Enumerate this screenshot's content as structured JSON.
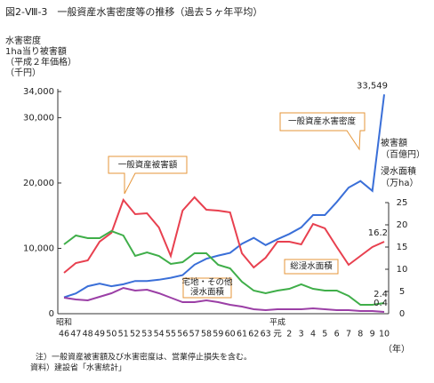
{
  "chart_data": {
    "type": "line",
    "title": "図2-Ⅷ-3　一般資産水害密度等の推移（過去５ヶ年平均）",
    "y_axis_title": [
      "水害密度",
      "1ha当り被害額",
      "（平成２年価格）",
      "（千円）"
    ],
    "y2_axis_title": [
      "被害額",
      "（百億円）",
      "浸水面積",
      "（万ha）"
    ],
    "x_axis_unit": "（年）",
    "eras": [
      {
        "label": "昭和",
        "at": "46"
      },
      {
        "label": "平成",
        "at": "元"
      }
    ],
    "categories": [
      "46",
      "47",
      "48",
      "49",
      "50",
      "51",
      "52",
      "53",
      "54",
      "55",
      "56",
      "57",
      "58",
      "59",
      "60",
      "61",
      "62",
      "63",
      "元",
      "2",
      "3",
      "4",
      "5",
      "6",
      "7",
      "8",
      "9",
      "10"
    ],
    "ylim": [
      0,
      34000
    ],
    "yticks": [
      0,
      {
        "value": 10000,
        "label": "10,000"
      },
      {
        "value": 20000,
        "label": "20,000"
      },
      {
        "value": 30000,
        "label": "30,000"
      },
      {
        "value": 34000,
        "label": "34,000"
      }
    ],
    "y2lim": [
      0,
      50
    ],
    "y2ticks": [
      0,
      5,
      10,
      15,
      20,
      25
    ],
    "series": [
      {
        "name": "一般資産水害密度",
        "color": "#3a6fd8",
        "values": [
          2500,
          3100,
          4200,
          4600,
          4200,
          4500,
          5000,
          5000,
          5200,
          5500,
          5900,
          7500,
          8400,
          8900,
          9300,
          10700,
          11600,
          10500,
          11400,
          12200,
          13200,
          15100,
          15100,
          17100,
          19300,
          20300,
          18800,
          33549
        ],
        "value_labels": [
          null,
          null,
          null,
          null,
          null,
          null,
          null,
          null,
          null,
          null,
          null,
          null,
          null,
          null,
          null,
          null,
          null,
          null,
          null,
          null,
          null,
          null,
          null,
          null,
          null,
          null,
          null,
          "33,549"
        ]
      },
      {
        "name": "一般資産被害額",
        "color": "#e8404f",
        "axis": "y2",
        "values": [
          9.2,
          11.4,
          12,
          16.2,
          18.2,
          25.6,
          22.4,
          22.6,
          19.4,
          13,
          23.2,
          26.2,
          23.4,
          23.2,
          22.8,
          13.6,
          10.4,
          12.6,
          16.2,
          16.2,
          15.6,
          20.2,
          19.2,
          15,
          11,
          13,
          15,
          16.2
        ],
        "value_labels": [
          null,
          null,
          null,
          null,
          null,
          null,
          null,
          null,
          null,
          null,
          null,
          null,
          null,
          null,
          null,
          null,
          null,
          null,
          null,
          null,
          null,
          null,
          null,
          null,
          null,
          null,
          null,
          "16.2"
        ]
      },
      {
        "name": "総浸水面積",
        "color": "#3fae49",
        "axis": "y2",
        "values": [
          15.6,
          17.6,
          17,
          17,
          18.6,
          17.6,
          13,
          13.8,
          13,
          11.2,
          11.6,
          13.6,
          13.6,
          11,
          10.2,
          7.2,
          5.2,
          4.6,
          5.2,
          5.6,
          6.6,
          5.6,
          5.2,
          5.2,
          4,
          2,
          2,
          2.4
        ],
        "value_labels": [
          null,
          null,
          null,
          null,
          null,
          null,
          null,
          null,
          null,
          null,
          null,
          null,
          null,
          null,
          null,
          null,
          null,
          null,
          null,
          null,
          null,
          null,
          null,
          null,
          null,
          null,
          null,
          "2.4"
        ]
      },
      {
        "name": "宅地・その他浸水面積",
        "color": "#9b3fa6",
        "axis": "y2",
        "values": [
          3.6,
          3.2,
          3,
          3.8,
          4.6,
          5.8,
          5.2,
          5.4,
          4.6,
          3.6,
          2.6,
          2.6,
          3,
          2.6,
          2,
          1.6,
          1,
          0.8,
          1,
          1,
          1,
          1.2,
          1,
          0.8,
          0.8,
          0.6,
          0.6,
          0.4
        ],
        "value_labels": [
          null,
          null,
          null,
          null,
          null,
          null,
          null,
          null,
          null,
          null,
          null,
          null,
          null,
          null,
          null,
          null,
          null,
          null,
          null,
          null,
          null,
          null,
          null,
          null,
          null,
          null,
          null,
          "0.4"
        ]
      }
    ],
    "annotations": [
      {
        "lines": [
          "一般資産水害密度"
        ]
      },
      {
        "lines": [
          "一般資産被害額"
        ]
      },
      {
        "lines": [
          "総浸水面積"
        ]
      },
      {
        "lines": [
          "宅地・その他",
          "浸水面積"
        ]
      }
    ],
    "notes": [
      "注）一般資産被害額及び水害密度は、営業停止損失を含む。",
      "資料）建設省「水害統計」"
    ]
  }
}
